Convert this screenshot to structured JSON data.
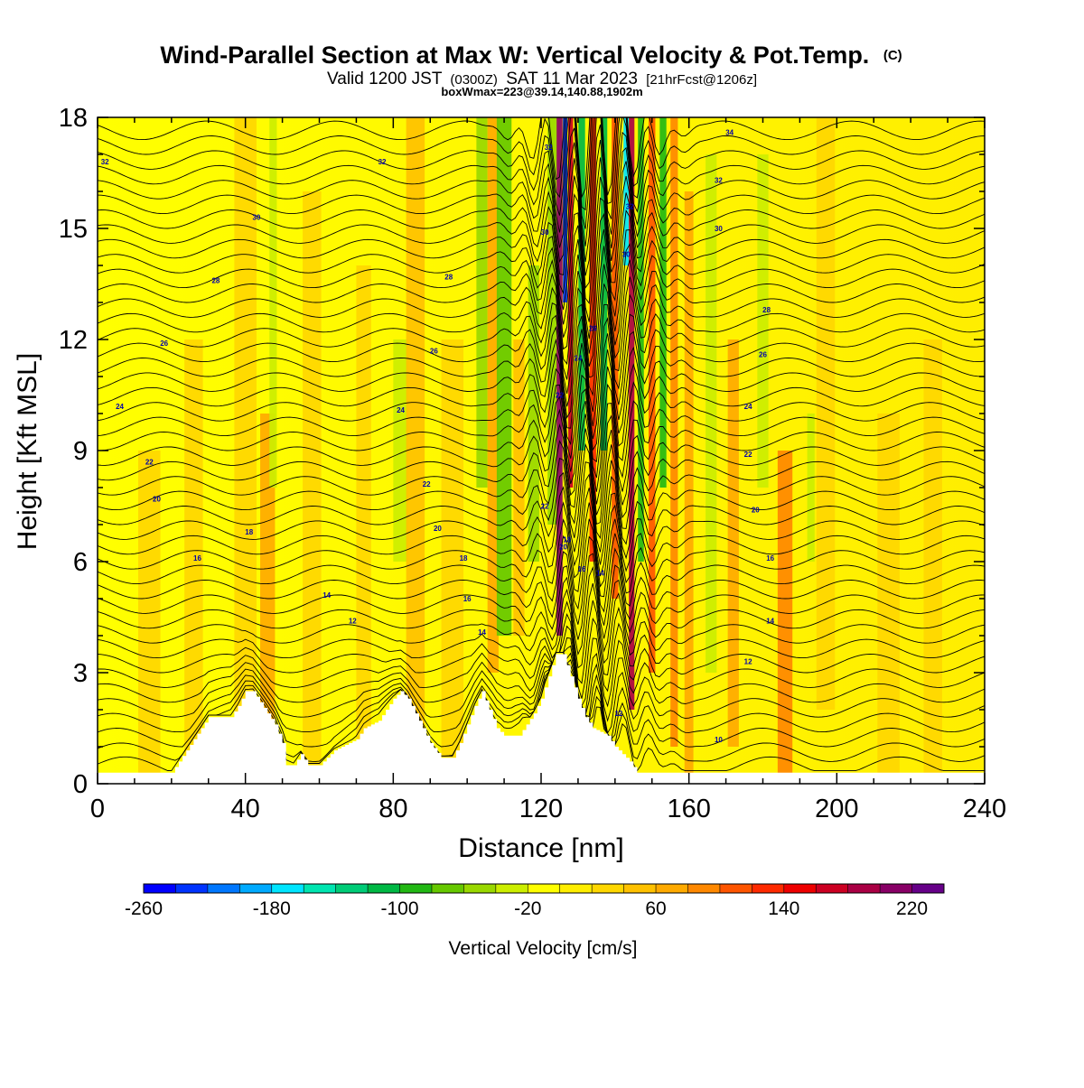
{
  "chart_data": {
    "type": "heatmap",
    "title": "Wind-Parallel Section at Max W: Vertical Velocity & Pot.Temp.",
    "title_mark": "(C)",
    "subtitle": {
      "parts": [
        "Valid 1200 JST",
        "(0300Z)",
        "SAT 11 Mar 2023",
        "[21hrFcst@1206z]"
      ]
    },
    "subtitle2": "boxWmax=223@39.14,140.88,1902m",
    "xlabel": "Distance [nm]",
    "ylabel": "Height [Kft MSL]",
    "xlim": [
      0,
      240
    ],
    "ylim": [
      0,
      18
    ],
    "x_ticks": [
      0,
      40,
      80,
      120,
      160,
      200,
      240
    ],
    "y_ticks": [
      0,
      3,
      6,
      9,
      12,
      15,
      18
    ],
    "terrain": [
      [
        0,
        0.3
      ],
      [
        20,
        0.3
      ],
      [
        22,
        0.6
      ],
      [
        24,
        0.9
      ],
      [
        26,
        1.2
      ],
      [
        28,
        1.5
      ],
      [
        30,
        1.8
      ],
      [
        36,
        1.8
      ],
      [
        38,
        2.1
      ],
      [
        40,
        2.5
      ],
      [
        42,
        2.5
      ],
      [
        44,
        2.2
      ],
      [
        46,
        1.9
      ],
      [
        48,
        1.6
      ],
      [
        50,
        1.1
      ],
      [
        51,
        0.5
      ],
      [
        53,
        0.5
      ],
      [
        55,
        0.8
      ],
      [
        57,
        0.5
      ],
      [
        60,
        0.5
      ],
      [
        62,
        0.7
      ],
      [
        64,
        0.9
      ],
      [
        66,
        1.0
      ],
      [
        70,
        1.2
      ],
      [
        72,
        1.5
      ],
      [
        76,
        1.7
      ],
      [
        78,
        2.0
      ],
      [
        80,
        2.3
      ],
      [
        82,
        2.5
      ],
      [
        84,
        2.3
      ],
      [
        86,
        1.9
      ],
      [
        88,
        1.5
      ],
      [
        90,
        1.1
      ],
      [
        93,
        0.7
      ],
      [
        96,
        0.7
      ],
      [
        98,
        1.1
      ],
      [
        100,
        1.6
      ],
      [
        102,
        2.1
      ],
      [
        104,
        2.5
      ],
      [
        106,
        2.0
      ],
      [
        108,
        1.5
      ],
      [
        110,
        1.3
      ],
      [
        114,
        1.3
      ],
      [
        116,
        1.6
      ],
      [
        118,
        1.9
      ],
      [
        120,
        2.3
      ],
      [
        122,
        2.9
      ],
      [
        124,
        3.5
      ],
      [
        126,
        3.5
      ],
      [
        128,
        2.9
      ],
      [
        130,
        2.3
      ],
      [
        132,
        1.8
      ],
      [
        134,
        1.5
      ],
      [
        138,
        1.3
      ],
      [
        140,
        1.0
      ],
      [
        142,
        0.8
      ],
      [
        144,
        0.6
      ],
      [
        146,
        0.3
      ],
      [
        240,
        0.3
      ]
    ],
    "colorbar": {
      "label": "Vertical Velocity [cm/s]",
      "min": -260,
      "max": 240,
      "step": 20,
      "tick_labels": [
        -260,
        -180,
        -100,
        -20,
        60,
        140,
        220
      ],
      "colors": [
        "#0000ff",
        "#0033ff",
        "#0077ff",
        "#00aaff",
        "#00e5ff",
        "#00e5b0",
        "#00cc77",
        "#00b844",
        "#22b814",
        "#66c800",
        "#99d800",
        "#ccee00",
        "#ffff00",
        "#ffee00",
        "#ffd700",
        "#ffc100",
        "#ffaa00",
        "#ff8800",
        "#ff5500",
        "#ff2a00",
        "#ee0000",
        "#cc0022",
        "#aa0044",
        "#880066",
        "#660088"
      ]
    },
    "theta_contours": [
      {
        "x": 2,
        "y": 16.8,
        "label": "32"
      },
      {
        "x": 77,
        "y": 16.8,
        "label": "32"
      },
      {
        "x": 122,
        "y": 17.2,
        "label": "32"
      },
      {
        "x": 144,
        "y": 15.6,
        "label": "32"
      },
      {
        "x": 171,
        "y": 17.6,
        "label": "34"
      },
      {
        "x": 168,
        "y": 16.3,
        "label": "32"
      },
      {
        "x": 43,
        "y": 15.3,
        "label": "30"
      },
      {
        "x": 121,
        "y": 14.9,
        "label": "30"
      },
      {
        "x": 143,
        "y": 14.3,
        "label": "30"
      },
      {
        "x": 168,
        "y": 15.0,
        "label": "30"
      },
      {
        "x": 32,
        "y": 13.6,
        "label": "28"
      },
      {
        "x": 95,
        "y": 13.7,
        "label": "28"
      },
      {
        "x": 181,
        "y": 12.8,
        "label": "28"
      },
      {
        "x": 18,
        "y": 11.9,
        "label": "26"
      },
      {
        "x": 91,
        "y": 11.7,
        "label": "26"
      },
      {
        "x": 134,
        "y": 12.3,
        "label": "26"
      },
      {
        "x": 180,
        "y": 11.6,
        "label": "26"
      },
      {
        "x": 130,
        "y": 11.5,
        "label": "24"
      },
      {
        "x": 6,
        "y": 10.2,
        "label": "24"
      },
      {
        "x": 82,
        "y": 10.1,
        "label": "24"
      },
      {
        "x": 176,
        "y": 10.2,
        "label": "24"
      },
      {
        "x": 125,
        "y": 10.5,
        "label": "22"
      },
      {
        "x": 14,
        "y": 8.7,
        "label": "22"
      },
      {
        "x": 89,
        "y": 8.1,
        "label": "22"
      },
      {
        "x": 176,
        "y": 8.9,
        "label": "22"
      },
      {
        "x": 121,
        "y": 7.5,
        "label": "22"
      },
      {
        "x": 16,
        "y": 7.7,
        "label": "20"
      },
      {
        "x": 92,
        "y": 6.9,
        "label": "20"
      },
      {
        "x": 126,
        "y": 6.4,
        "label": "20"
      },
      {
        "x": 178,
        "y": 7.4,
        "label": "20"
      },
      {
        "x": 127,
        "y": 6.6,
        "label": "18"
      },
      {
        "x": 41,
        "y": 6.8,
        "label": "18"
      },
      {
        "x": 99,
        "y": 6.1,
        "label": "18"
      },
      {
        "x": 131,
        "y": 5.8,
        "label": "16"
      },
      {
        "x": 27,
        "y": 6.1,
        "label": "16"
      },
      {
        "x": 100,
        "y": 5.0,
        "label": "16"
      },
      {
        "x": 182,
        "y": 6.1,
        "label": "16"
      },
      {
        "x": 136,
        "y": 5.7,
        "label": "14"
      },
      {
        "x": 62,
        "y": 5.1,
        "label": "14"
      },
      {
        "x": 104,
        "y": 4.1,
        "label": "14"
      },
      {
        "x": 182,
        "y": 4.4,
        "label": "14"
      },
      {
        "x": 69,
        "y": 4.4,
        "label": "12"
      },
      {
        "x": 176,
        "y": 3.3,
        "label": "12"
      },
      {
        "x": 141,
        "y": 1.9,
        "label": "12"
      },
      {
        "x": 168,
        "y": 1.2,
        "label": "10"
      }
    ]
  }
}
